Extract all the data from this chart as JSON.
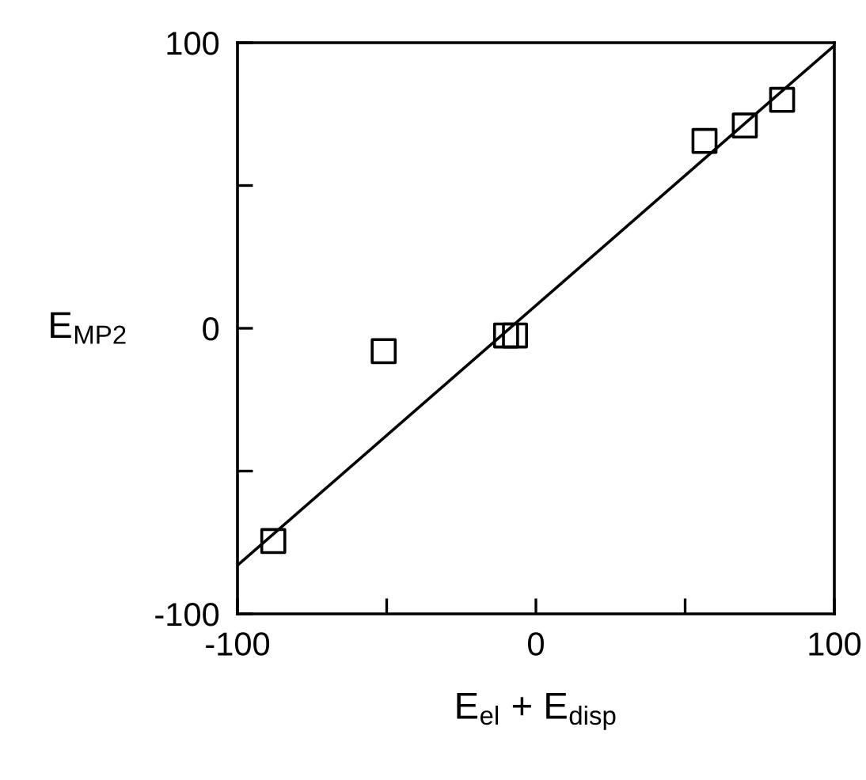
{
  "chart_data": {
    "type": "scatter",
    "xlabel": "E$_{el}$ + E$_{disp}$",
    "ylabel": "E$_{MP2}$",
    "xlim": [
      -100,
      100
    ],
    "ylim": [
      -100,
      100
    ],
    "xticks": [
      -100,
      {
        "value": -50,
        "label": null
      },
      0,
      {
        "value": 50,
        "label": null
      },
      100
    ],
    "yticks": [
      -100,
      {
        "value": -50,
        "label": null
      },
      0,
      {
        "value": 50,
        "label": null
      },
      100
    ],
    "grid": false,
    "legend": false,
    "marker": "square",
    "series": [
      {
        "color": "#000000",
        "x": [
          -88,
          -51,
          -10,
          -7,
          56.5,
          70,
          82.5
        ],
        "values": [
          -74.5,
          -8,
          -2.5,
          -2.5,
          65.6,
          71,
          80
        ]
      },
      {
        "type": "line",
        "marker": "none",
        "color": "#000000",
        "x": [
          -100,
          100
        ],
        "values": [
          -83,
          99
        ]
      }
    ]
  }
}
